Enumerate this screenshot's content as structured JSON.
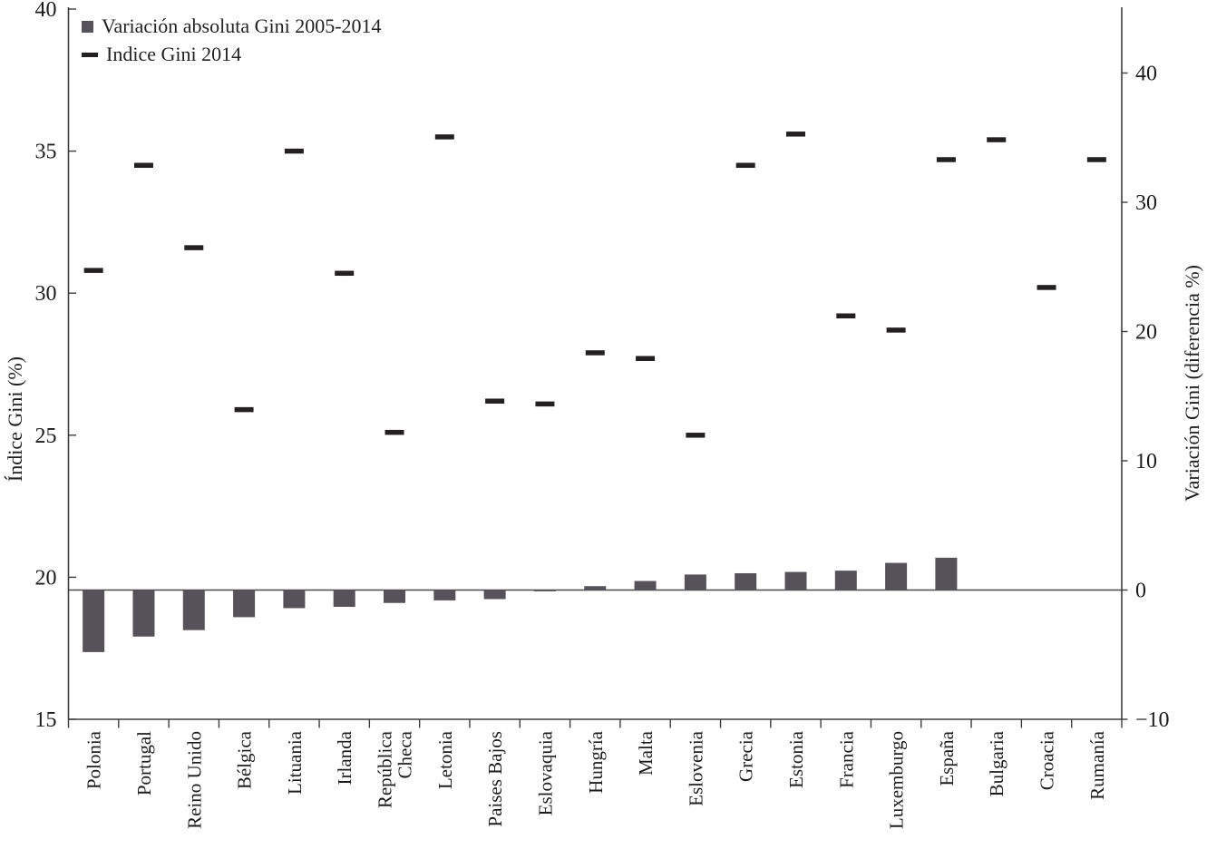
{
  "chart_data": {
    "type": "combo-bar-marker",
    "categories": [
      "Polonia",
      "Portugal",
      "Reino Unido",
      "Bélgica",
      "Lituania",
      "Irlanda",
      "República\nCheca",
      "Letonia",
      "Paises Bajos",
      "Eslovaquia",
      "Hungría",
      "Malta",
      "Eslovenia",
      "Grecia",
      "Estonia",
      "Francia",
      "Luxemburgo",
      "España",
      "Bulgaria",
      "Croacia",
      "Rumanía"
    ],
    "series": [
      {
        "name": "Variación absoluta Gini 2005-2014",
        "type": "bar",
        "axis": "right",
        "color": "#56525a",
        "values": [
          -4.8,
          -3.6,
          -3.1,
          -2.1,
          -1.4,
          -1.3,
          -1.0,
          -0.8,
          -0.7,
          -0.1,
          0.3,
          0.7,
          1.2,
          1.3,
          1.4,
          1.5,
          2.1,
          2.5,
          null,
          null,
          null
        ]
      },
      {
        "name": "Indice Gini 2014",
        "type": "dash-marker",
        "axis": "left",
        "color": "#232022",
        "values": [
          30.8,
          34.5,
          31.6,
          25.9,
          35.0,
          30.7,
          25.1,
          35.5,
          26.2,
          26.1,
          27.9,
          27.7,
          25.0,
          34.5,
          35.6,
          29.2,
          28.7,
          34.7,
          35.4,
          30.2,
          34.7
        ]
      }
    ],
    "left_axis": {
      "label": "Índice Gini (%)",
      "min": 15,
      "max": 40,
      "ticks": [
        15,
        20,
        25,
        30,
        35,
        40
      ],
      "tick_labels": [
        "15",
        "20",
        "25",
        "30",
        "35",
        "40"
      ]
    },
    "right_axis": {
      "label": "Variación Gini (diferencia %)",
      "min": -10,
      "max": 40,
      "ticks": [
        -10,
        0,
        10,
        20,
        30,
        40
      ],
      "tick_labels": [
        "−10",
        "0",
        "10",
        "20",
        "30",
        "40"
      ]
    },
    "zero_line": true,
    "grid": false,
    "legend_position": "top-left"
  }
}
